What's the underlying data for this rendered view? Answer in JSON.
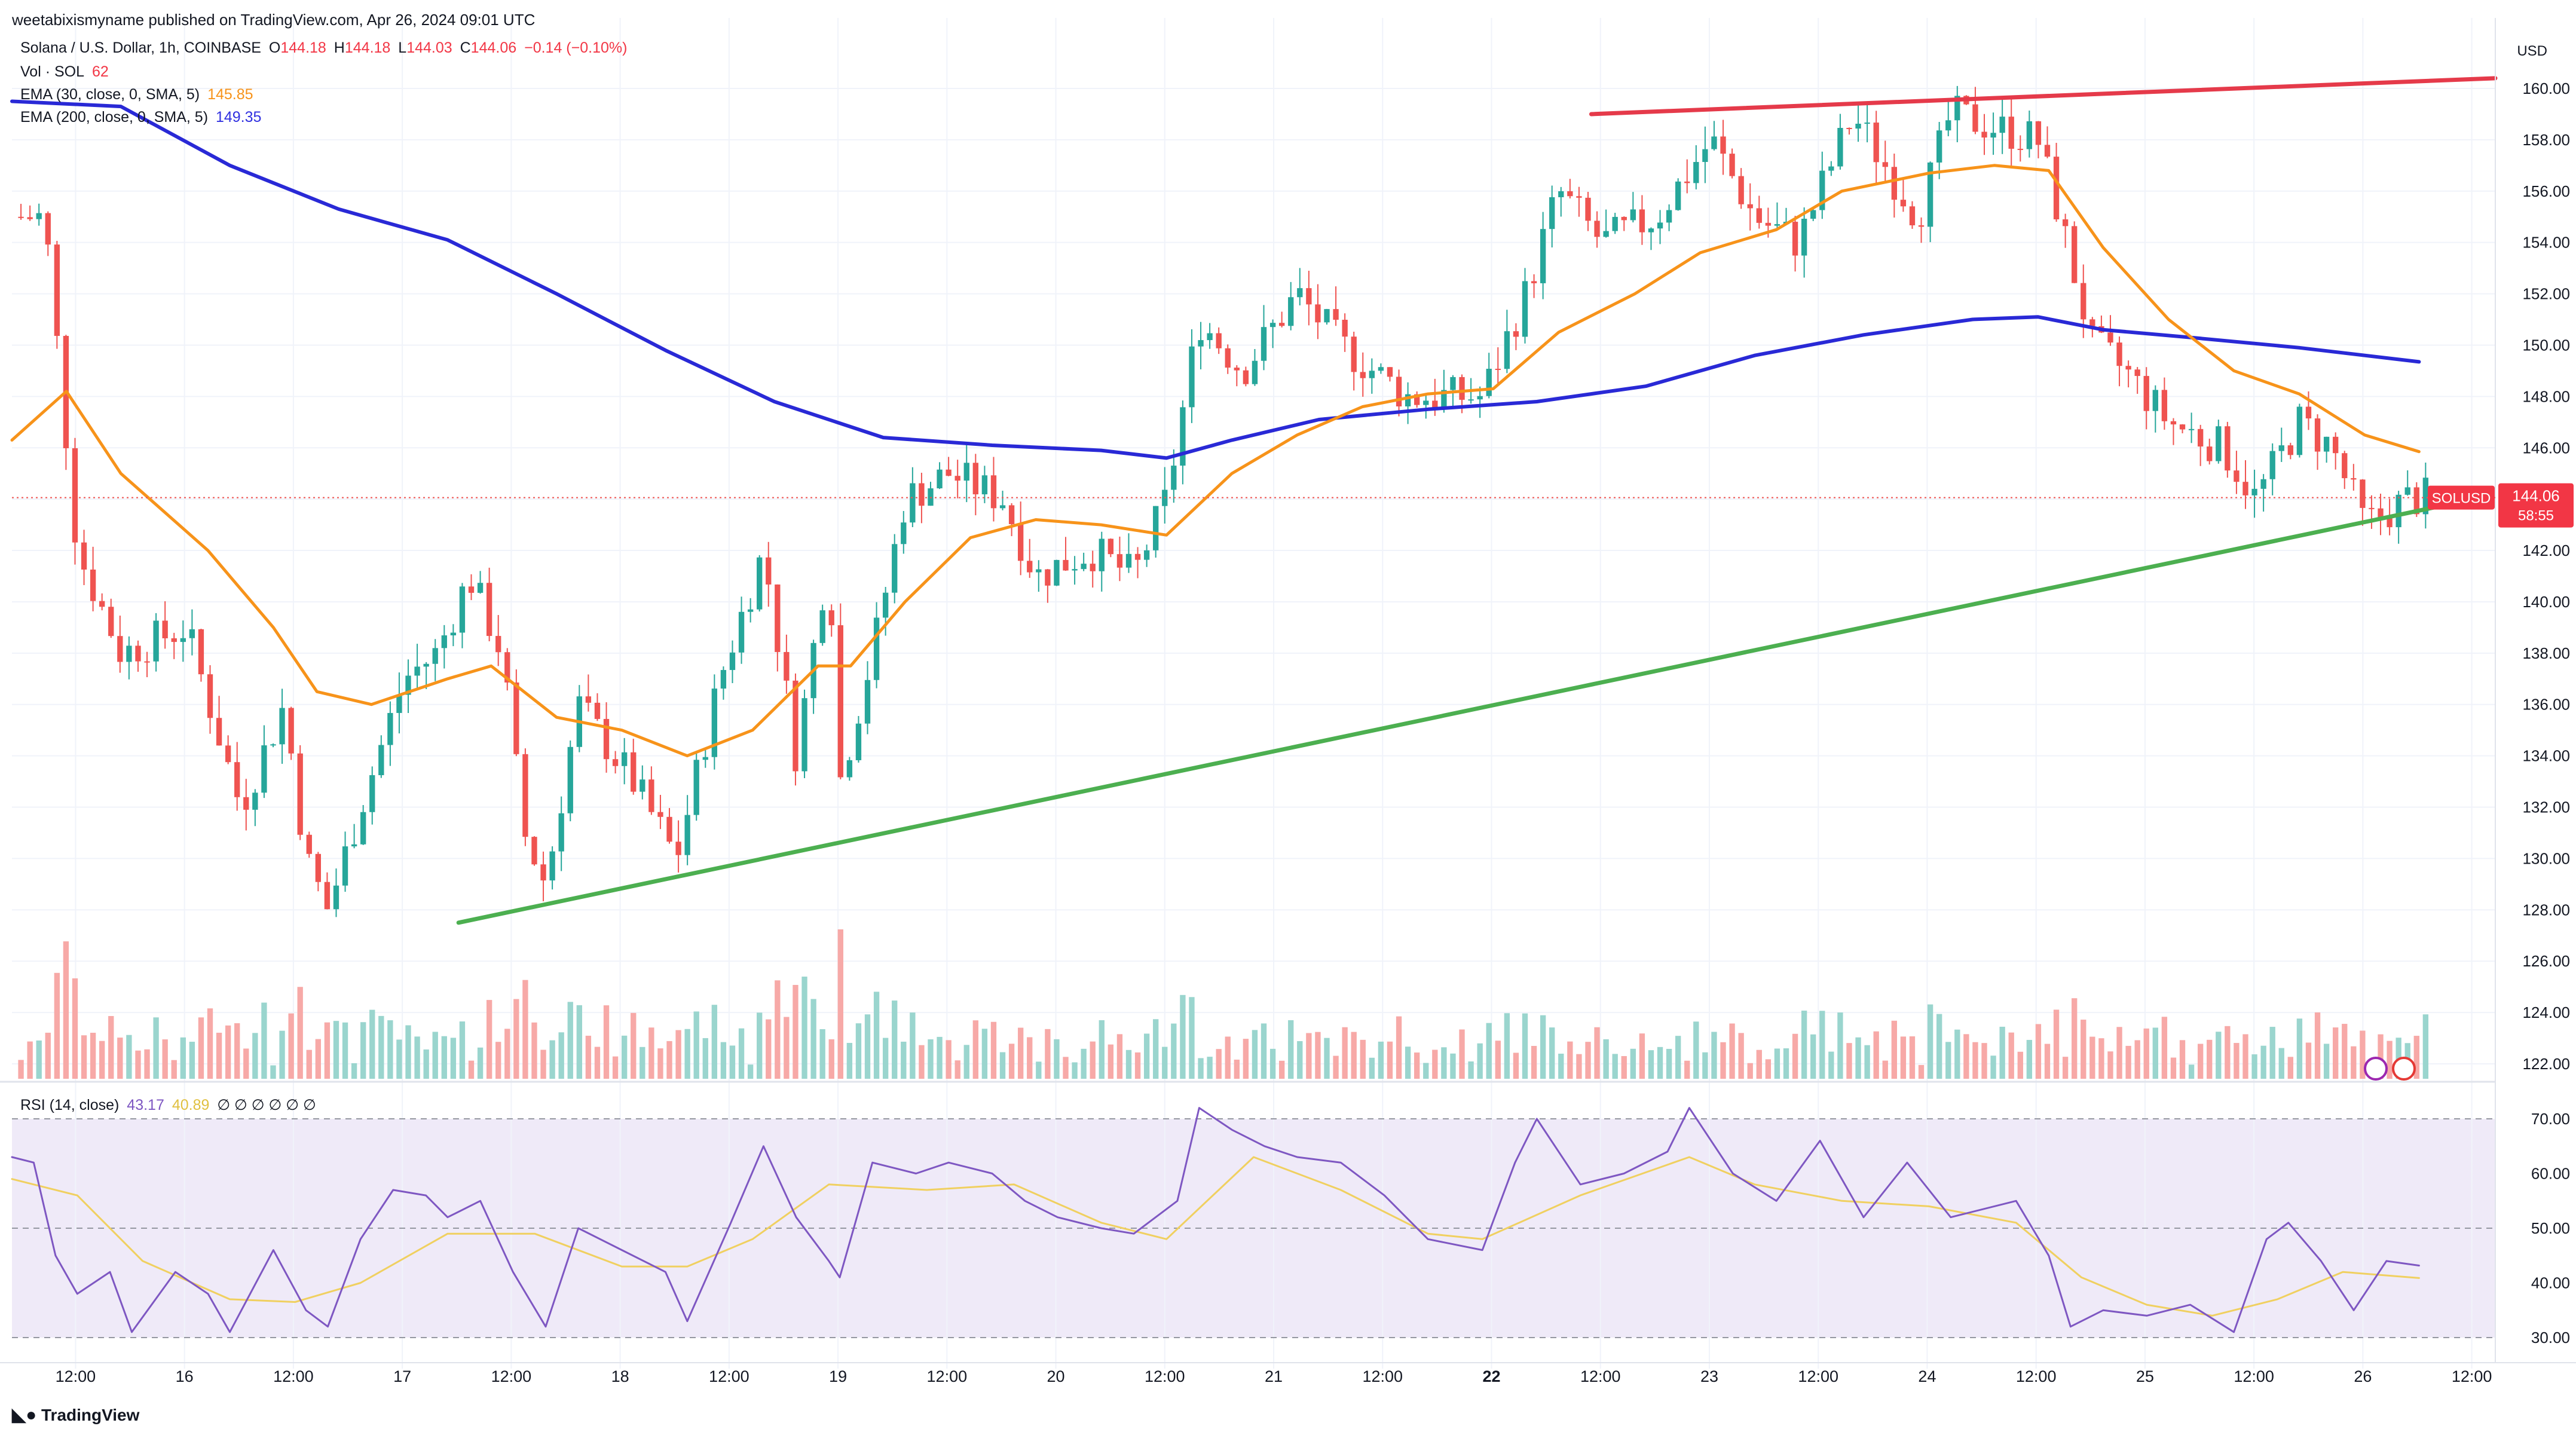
{
  "header": {
    "published": "weetabixismyname published on TradingView.com, Apr 26, 2024 09:01 UTC"
  },
  "legend": {
    "symbol": "Solana / U.S. Dollar, 1h, COINBASE",
    "ohlc": {
      "o_label": "O",
      "o": "144.18",
      "h_label": "H",
      "h": "144.18",
      "l_label": "L",
      "l": "144.03",
      "c_label": "C",
      "c": "144.06",
      "change": "−0.14 (−0.10%)"
    },
    "vol_label": "Vol · SOL",
    "vol_value": "62",
    "ema30_label": "EMA (30, close, 0, SMA, 5)",
    "ema30_value": "145.85",
    "ema200_label": "EMA (200, close, 0, SMA, 5)",
    "ema200_value": "149.35",
    "rsi_label": "RSI (14, close)",
    "rsi_value": "43.17",
    "rsi_ma_value": "40.89",
    "rsi_extras": "∅ ∅ ∅ ∅ ∅ ∅"
  },
  "currency": "USD",
  "price_tag": {
    "symbol": "SOLUSD",
    "price": "144.06",
    "countdown": "58:55"
  },
  "footer": {
    "brand": "TradingView"
  },
  "colors": {
    "up": "#26a69a",
    "down": "#ef5350",
    "ema30": "#f7931a",
    "ema200": "#2929d6",
    "resistance": "#e53a4a",
    "support": "#4caf50",
    "rsi": "#7e57c2",
    "rsi_ma": "#f0d060",
    "rsi_band": "#efeaf8"
  },
  "chart_data": {
    "type": "candlestick",
    "price_axis": {
      "min": 122,
      "max": 160,
      "ticks": [
        "122.00",
        "124.00",
        "126.00",
        "128.00",
        "130.00",
        "132.00",
        "134.00",
        "136.00",
        "138.00",
        "140.00",
        "142.00",
        "144.00",
        "146.00",
        "148.00",
        "150.00",
        "152.00",
        "154.00",
        "156.00",
        "158.00",
        "160.00"
      ]
    },
    "time_axis": {
      "start": "Apr 15 05:00",
      "end": "Apr 26 09:00",
      "labels": [
        {
          "t": 0.292,
          "label": "12:00"
        },
        {
          "t": 0.792,
          "label": "16"
        },
        {
          "t": 1.292,
          "label": "12:00"
        },
        {
          "t": 1.792,
          "label": "17"
        },
        {
          "t": 2.292,
          "label": "12:00"
        },
        {
          "t": 2.792,
          "label": "18"
        },
        {
          "t": 3.292,
          "label": "12:00"
        },
        {
          "t": 3.792,
          "label": "19"
        },
        {
          "t": 4.292,
          "label": "12:00"
        },
        {
          "t": 4.792,
          "label": "20"
        },
        {
          "t": 5.292,
          "label": "12:00"
        },
        {
          "t": 5.792,
          "label": "21"
        },
        {
          "t": 6.292,
          "label": "12:00"
        },
        {
          "t": 6.792,
          "label": "22",
          "bold": true
        },
        {
          "t": 7.292,
          "label": "12:00"
        },
        {
          "t": 7.792,
          "label": "23"
        },
        {
          "t": 8.292,
          "label": "12:00"
        },
        {
          "t": 8.792,
          "label": "24"
        },
        {
          "t": 9.292,
          "label": "12:00"
        },
        {
          "t": 9.792,
          "label": "25"
        },
        {
          "t": 10.292,
          "label": "12:00"
        },
        {
          "t": 10.792,
          "label": "26"
        },
        {
          "t": 11.292,
          "label": "12:00"
        }
      ]
    },
    "close_path": [
      [
        0,
        155
      ],
      [
        0.15,
        155
      ],
      [
        0.3,
        142
      ],
      [
        0.5,
        138
      ],
      [
        0.8,
        139
      ],
      [
        1.05,
        132
      ],
      [
        1.25,
        136
      ],
      [
        1.35,
        130
      ],
      [
        1.45,
        128
      ],
      [
        1.6,
        132
      ],
      [
        1.8,
        137
      ],
      [
        1.95,
        138
      ],
      [
        2.1,
        141
      ],
      [
        2.25,
        138
      ],
      [
        2.35,
        131
      ],
      [
        2.45,
        129
      ],
      [
        2.6,
        136
      ],
      [
        2.85,
        133
      ],
      [
        3.05,
        130
      ],
      [
        3.25,
        137
      ],
      [
        3.45,
        142
      ],
      [
        3.6,
        134
      ],
      [
        3.75,
        142
      ],
      [
        3.8,
        133
      ],
      [
        3.95,
        138
      ],
      [
        4.1,
        144
      ],
      [
        4.3,
        145
      ],
      [
        4.55,
        144
      ],
      [
        4.7,
        141
      ],
      [
        4.95,
        142
      ],
      [
        5.15,
        141
      ],
      [
        5.3,
        144
      ],
      [
        5.45,
        151
      ],
      [
        5.65,
        149
      ],
      [
        5.9,
        152
      ],
      [
        6.1,
        150
      ],
      [
        6.4,
        148
      ],
      [
        6.75,
        148
      ],
      [
        6.95,
        152
      ],
      [
        7.1,
        156
      ],
      [
        7.3,
        154
      ],
      [
        7.55,
        155
      ],
      [
        7.8,
        158
      ],
      [
        8.0,
        155
      ],
      [
        8.2,
        154
      ],
      [
        8.45,
        159
      ],
      [
        8.75,
        155
      ],
      [
        8.9,
        159
      ],
      [
        9.3,
        158
      ],
      [
        9.4,
        155
      ],
      [
        9.55,
        150
      ],
      [
        9.7,
        149
      ],
      [
        9.9,
        147
      ],
      [
        10.15,
        146
      ],
      [
        10.3,
        144
      ],
      [
        10.5,
        147
      ],
      [
        10.65,
        146
      ],
      [
        10.8,
        143
      ],
      [
        11.0,
        144
      ],
      [
        11.08,
        144.06
      ]
    ],
    "ema30_path": [
      [
        0,
        146.3
      ],
      [
        0.25,
        148.2
      ],
      [
        0.5,
        145
      ],
      [
        0.9,
        142
      ],
      [
        1.2,
        139
      ],
      [
        1.4,
        136.5
      ],
      [
        1.65,
        136
      ],
      [
        2.0,
        137
      ],
      [
        2.2,
        137.5
      ],
      [
        2.5,
        135.5
      ],
      [
        2.8,
        135
      ],
      [
        3.1,
        134
      ],
      [
        3.4,
        135
      ],
      [
        3.7,
        137.5
      ],
      [
        3.85,
        137.5
      ],
      [
        4.1,
        140
      ],
      [
        4.4,
        142.5
      ],
      [
        4.7,
        143.2
      ],
      [
        5.0,
        143
      ],
      [
        5.3,
        142.6
      ],
      [
        5.6,
        145
      ],
      [
        5.9,
        146.5
      ],
      [
        6.2,
        147.6
      ],
      [
        6.5,
        148.1
      ],
      [
        6.8,
        148.3
      ],
      [
        7.1,
        150.5
      ],
      [
        7.45,
        152
      ],
      [
        7.75,
        153.6
      ],
      [
        8.1,
        154.5
      ],
      [
        8.4,
        156
      ],
      [
        8.8,
        156.7
      ],
      [
        9.1,
        157
      ],
      [
        9.35,
        156.8
      ],
      [
        9.6,
        153.8
      ],
      [
        9.9,
        151
      ],
      [
        10.2,
        149
      ],
      [
        10.5,
        148.1
      ],
      [
        10.8,
        146.5
      ],
      [
        11.05,
        145.85
      ]
    ],
    "ema200_path": [
      [
        0,
        159.5
      ],
      [
        0.5,
        159.3
      ],
      [
        1.0,
        157
      ],
      [
        1.5,
        155.3
      ],
      [
        2.0,
        154.1
      ],
      [
        2.5,
        152
      ],
      [
        3.0,
        149.8
      ],
      [
        3.5,
        147.8
      ],
      [
        4.0,
        146.4
      ],
      [
        4.5,
        146.1
      ],
      [
        5.0,
        145.9
      ],
      [
        5.3,
        145.6
      ],
      [
        5.6,
        146.3
      ],
      [
        6.0,
        147.1
      ],
      [
        6.5,
        147.5
      ],
      [
        7.0,
        147.8
      ],
      [
        7.5,
        148.4
      ],
      [
        8.0,
        149.6
      ],
      [
        8.5,
        150.4
      ],
      [
        9.0,
        151.0
      ],
      [
        9.3,
        151.1
      ],
      [
        9.6,
        150.6
      ],
      [
        10.0,
        150.3
      ],
      [
        10.5,
        149.9
      ],
      [
        11.05,
        149.35
      ]
    ],
    "trendlines": [
      {
        "name": "resistance",
        "from": [
          7.25,
          159.0
        ],
        "to": [
          11.4,
          160.4
        ]
      },
      {
        "name": "support",
        "from": [
          2.05,
          127.5
        ],
        "to": [
          11.3,
          144.0
        ]
      }
    ],
    "rsi_axis": {
      "ticks": [
        "30.00",
        "40.00",
        "50.00",
        "60.00",
        "70.00"
      ],
      "band": [
        30,
        70
      ]
    },
    "rsi_path": [
      [
        0,
        63
      ],
      [
        0.1,
        62
      ],
      [
        0.2,
        45
      ],
      [
        0.3,
        38
      ],
      [
        0.45,
        42
      ],
      [
        0.55,
        31
      ],
      [
        0.75,
        42
      ],
      [
        0.9,
        38
      ],
      [
        1.0,
        31
      ],
      [
        1.2,
        46
      ],
      [
        1.35,
        35
      ],
      [
        1.45,
        32
      ],
      [
        1.6,
        48
      ],
      [
        1.75,
        57
      ],
      [
        1.9,
        56
      ],
      [
        2.0,
        52
      ],
      [
        2.15,
        55
      ],
      [
        2.3,
        42
      ],
      [
        2.45,
        32
      ],
      [
        2.6,
        50
      ],
      [
        2.8,
        46
      ],
      [
        3.0,
        42
      ],
      [
        3.1,
        33
      ],
      [
        3.3,
        51
      ],
      [
        3.45,
        65
      ],
      [
        3.6,
        52
      ],
      [
        3.75,
        44
      ],
      [
        3.8,
        41
      ],
      [
        3.95,
        62
      ],
      [
        4.15,
        60
      ],
      [
        4.3,
        62
      ],
      [
        4.5,
        60
      ],
      [
        4.65,
        55
      ],
      [
        4.8,
        52
      ],
      [
        5.0,
        50
      ],
      [
        5.15,
        49
      ],
      [
        5.35,
        55
      ],
      [
        5.45,
        72
      ],
      [
        5.6,
        68
      ],
      [
        5.75,
        65
      ],
      [
        5.9,
        63
      ],
      [
        6.1,
        62
      ],
      [
        6.3,
        56
      ],
      [
        6.5,
        48
      ],
      [
        6.75,
        46
      ],
      [
        6.9,
        62
      ],
      [
        7.0,
        70
      ],
      [
        7.2,
        58
      ],
      [
        7.4,
        60
      ],
      [
        7.6,
        64
      ],
      [
        7.7,
        72
      ],
      [
        7.9,
        60
      ],
      [
        8.1,
        55
      ],
      [
        8.3,
        66
      ],
      [
        8.5,
        52
      ],
      [
        8.7,
        62
      ],
      [
        8.9,
        52
      ],
      [
        9.2,
        55
      ],
      [
        9.35,
        45
      ],
      [
        9.45,
        32
      ],
      [
        9.6,
        35
      ],
      [
        9.8,
        34
      ],
      [
        10.0,
        36
      ],
      [
        10.2,
        31
      ],
      [
        10.35,
        48
      ],
      [
        10.45,
        51
      ],
      [
        10.6,
        44
      ],
      [
        10.75,
        35
      ],
      [
        10.9,
        44
      ],
      [
        11.05,
        43.17
      ]
    ],
    "rsi_ma_path": [
      [
        0,
        59
      ],
      [
        0.3,
        56
      ],
      [
        0.6,
        44
      ],
      [
        1.0,
        37
      ],
      [
        1.3,
        36.5
      ],
      [
        1.6,
        40
      ],
      [
        2.0,
        49
      ],
      [
        2.4,
        49
      ],
      [
        2.8,
        43
      ],
      [
        3.1,
        43
      ],
      [
        3.4,
        48
      ],
      [
        3.75,
        58
      ],
      [
        4.2,
        57
      ],
      [
        4.6,
        58
      ],
      [
        5.0,
        51
      ],
      [
        5.3,
        48
      ],
      [
        5.7,
        63
      ],
      [
        6.1,
        57
      ],
      [
        6.5,
        49
      ],
      [
        6.75,
        48
      ],
      [
        7.2,
        56
      ],
      [
        7.7,
        63
      ],
      [
        8.0,
        58
      ],
      [
        8.4,
        55
      ],
      [
        8.8,
        54
      ],
      [
        9.2,
        51
      ],
      [
        9.5,
        41
      ],
      [
        9.8,
        36
      ],
      [
        10.1,
        34
      ],
      [
        10.4,
        37
      ],
      [
        10.7,
        42
      ],
      [
        11.05,
        40.89
      ]
    ]
  }
}
